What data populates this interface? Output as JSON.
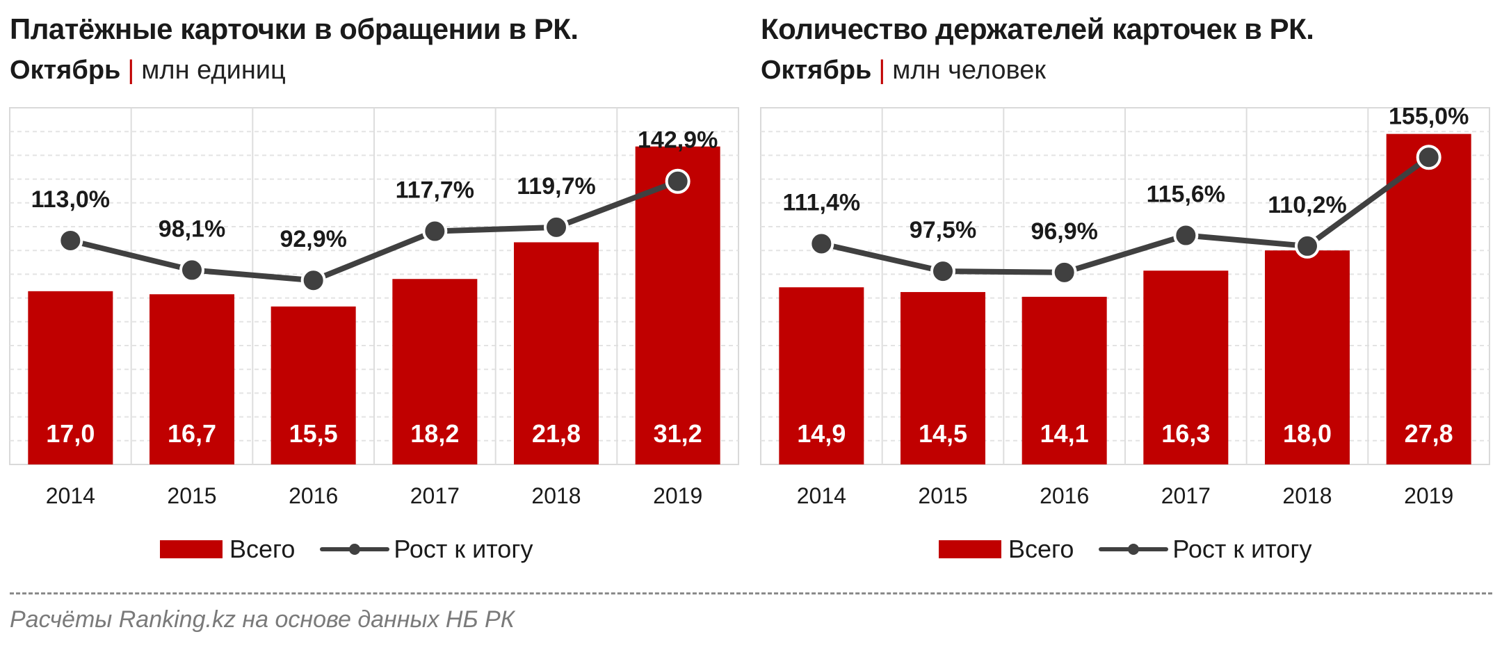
{
  "chart_data": [
    {
      "type": "bar",
      "title": "Платёжные карточки в обращении в РК.",
      "subtitle_month": "Октябрь",
      "subtitle_unit": "млн единиц",
      "categories": [
        "2014",
        "2015",
        "2016",
        "2017",
        "2018",
        "2019"
      ],
      "series": [
        {
          "name": "Всего",
          "type": "bar",
          "values": [
            17.0,
            16.7,
            15.5,
            18.2,
            21.8,
            31.2
          ],
          "labels": [
            "17,0",
            "16,7",
            "15,5",
            "18,2",
            "21,8",
            "31,2"
          ]
        },
        {
          "name": "Рост к итогу",
          "type": "line",
          "values": [
            113.0,
            98.1,
            92.9,
            117.7,
            119.7,
            142.9
          ],
          "labels": [
            "113,0%",
            "98,1%",
            "92,9%",
            "117,7%",
            "119,7%",
            "142,9%"
          ]
        }
      ],
      "ylim": [
        0,
        35
      ],
      "y2lim": [
        0,
        180
      ],
      "grid": true,
      "legend_position": "bottom",
      "colors": {
        "bar": "#c00000",
        "line": "#404040"
      }
    },
    {
      "type": "bar",
      "title": "Количество держателей карточек в РК.",
      "subtitle_month": "Октябрь",
      "subtitle_unit": "млн человек",
      "categories": [
        "2014",
        "2015",
        "2016",
        "2017",
        "2018",
        "2019"
      ],
      "series": [
        {
          "name": "Всего",
          "type": "bar",
          "values": [
            14.9,
            14.5,
            14.1,
            16.3,
            18.0,
            27.8
          ],
          "labels": [
            "14,9",
            "14,5",
            "14,1",
            "16,3",
            "18,0",
            "27,8"
          ]
        },
        {
          "name": "Рост к итогу",
          "type": "line",
          "values": [
            111.4,
            97.5,
            96.9,
            115.6,
            110.2,
            155.0
          ],
          "labels": [
            "111,4%",
            "97,5%",
            "96,9%",
            "115,6%",
            "110,2%",
            "155,0%"
          ]
        }
      ],
      "ylim": [
        0,
        30
      ],
      "y2lim": [
        0,
        180
      ],
      "grid": true,
      "legend_position": "bottom",
      "colors": {
        "bar": "#c00000",
        "line": "#404040"
      }
    }
  ],
  "source": "Расчёты Ranking.kz на основе данных  НБ РК"
}
